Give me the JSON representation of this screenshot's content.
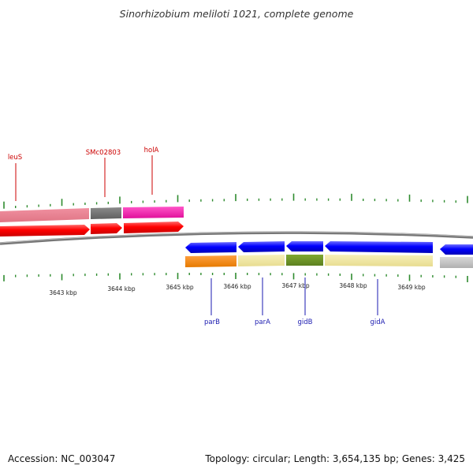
{
  "title": "Sinorhizobium meliloti 1021, complete genome",
  "footer": {
    "accession": "Accession: NC_003047",
    "summary": "Topology: circular; Length: 3,654,135 bp; Genes: 3,425"
  },
  "colors": {
    "backbone": "#808080",
    "tick": "#2e8b2e",
    "label_top": "#cc0000",
    "label_bottom": "#1a1ab0",
    "forward_cds": "#ff0000",
    "reverse_cds": "#0000ff"
  },
  "scale_labels": [
    "3643 kbp",
    "3644 kbp",
    "3645 kbp",
    "3646 kbp",
    "3647 kbp",
    "3648 kbp",
    "3649 kbp"
  ],
  "top_labels": [
    "leuS",
    "SMc02803",
    "holA"
  ],
  "bottom_labels": [
    "parB",
    "parA",
    "gidB",
    "gidA"
  ]
}
